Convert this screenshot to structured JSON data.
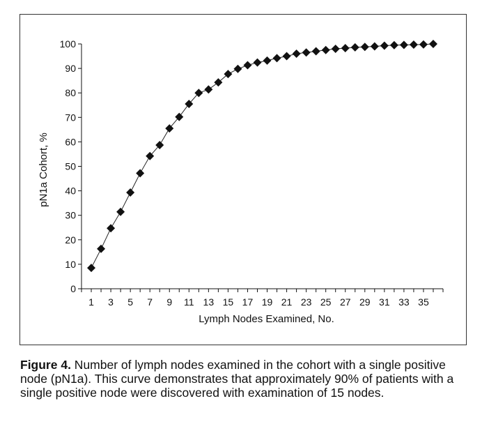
{
  "chart_data": {
    "type": "line",
    "xlabel": "Lymph Nodes Examined, No.",
    "ylabel": "pN1a Cohort, %",
    "xlim": [
      0,
      37
    ],
    "ylim": [
      0,
      100
    ],
    "x_ticks": [
      1,
      3,
      5,
      7,
      9,
      11,
      13,
      15,
      17,
      19,
      21,
      23,
      25,
      27,
      29,
      31,
      33,
      35
    ],
    "y_ticks": [
      0,
      10,
      20,
      30,
      40,
      50,
      60,
      70,
      80,
      90,
      100
    ],
    "grid": false,
    "legend": "none",
    "marker": "diamond",
    "x": [
      1,
      2,
      3,
      4,
      5,
      6,
      7,
      8,
      9,
      10,
      11,
      12,
      13,
      14,
      15,
      16,
      17,
      18,
      19,
      20,
      21,
      22,
      23,
      24,
      25,
      26,
      27,
      28,
      29,
      30,
      31,
      32,
      33,
      34,
      35,
      36
    ],
    "y": [
      8.5,
      16.3,
      24.7,
      31.4,
      39.3,
      47.2,
      54.2,
      58.7,
      65.5,
      70.2,
      75.5,
      80.0,
      81.4,
      84.3,
      87.7,
      89.8,
      91.3,
      92.4,
      93.2,
      94.2,
      95.0,
      96.0,
      96.5,
      97.0,
      97.5,
      98.0,
      98.3,
      98.6,
      98.8,
      99.0,
      99.3,
      99.5,
      99.6,
      99.7,
      99.8,
      100.0
    ]
  },
  "caption": {
    "lead": "Figure 4.",
    "text": " Number of lymph nodes examined in the cohort with a single positive node (pN1a). This curve demonstrates that approximately 90% of patients with a single positive node were discovered with examination of 15 nodes."
  }
}
